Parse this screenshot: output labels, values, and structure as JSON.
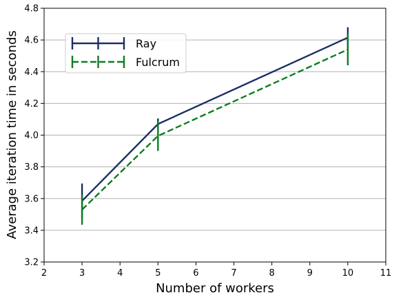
{
  "chart_data": {
    "type": "line",
    "title": "",
    "xlabel": "Number of workers",
    "ylabel": "Average iteration time in seconds",
    "xlim": [
      2,
      11
    ],
    "ylim": [
      3.2,
      4.8
    ],
    "x_ticks": [
      2,
      3,
      4,
      5,
      6,
      7,
      8,
      9,
      10,
      11
    ],
    "y_ticks": [
      "3.2",
      "3.4",
      "3.6",
      "3.8",
      "4.0",
      "4.2",
      "4.4",
      "4.6",
      "4.8"
    ],
    "grid": "horizontal",
    "legend_position": "upper-left",
    "x": [
      3,
      5,
      10
    ],
    "series": [
      {
        "name": "Ray",
        "color": "#1b2e63",
        "line_style": "solid",
        "values": [
          3.585,
          4.07,
          4.615
        ],
        "error": [
          0.11,
          0.035,
          0.065
        ]
      },
      {
        "name": "Fulcrum",
        "color": "#0b7d22",
        "line_style": "dashed",
        "values": [
          3.53,
          3.995,
          4.54
        ],
        "error": [
          0.095,
          0.095,
          0.1
        ]
      }
    ]
  }
}
